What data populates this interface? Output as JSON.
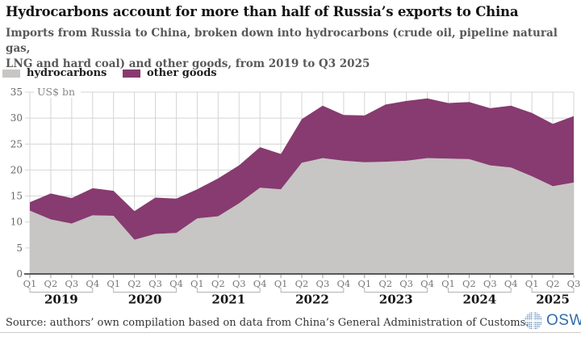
{
  "header": {
    "title": "Hydrocarbons account for more than half of Russia’s exports to China",
    "subtitle_lines": [
      "Imports from Russia to China, broken down into hydrocarbons (crude oil, pipeline natural gas,",
      "LNG and hard coal) and other goods, from 2019 to Q3 2025"
    ]
  },
  "source": "Source: authors’ own compilation based on data from China’s General Administration of Customs.",
  "logo": {
    "text": "OSW",
    "color": "#2f6da9"
  },
  "chart_data": {
    "type": "area",
    "stacked": true,
    "ylabel": "US$ bn",
    "ylim": [
      0,
      35
    ],
    "ytick_step": 5,
    "grid": true,
    "legend_position": "top-left",
    "quarter_labels": [
      "Q1",
      "Q2",
      "Q3",
      "Q4",
      "Q1",
      "Q2",
      "Q3",
      "Q4",
      "Q1",
      "Q2",
      "Q3",
      "Q4",
      "Q1",
      "Q2",
      "Q3",
      "Q4",
      "Q1",
      "Q2",
      "Q3",
      "Q4",
      "Q1",
      "Q2",
      "Q3",
      "Q4",
      "Q1",
      "Q2",
      "Q3"
    ],
    "year_groups": [
      {
        "label": "2019",
        "count": 4
      },
      {
        "label": "2020",
        "count": 4
      },
      {
        "label": "2021",
        "count": 4
      },
      {
        "label": "2022",
        "count": 4
      },
      {
        "label": "2023",
        "count": 4
      },
      {
        "label": "2024",
        "count": 4
      },
      {
        "label": "2025",
        "count": 3
      }
    ],
    "series": [
      {
        "name": "hydrocarbons",
        "color": "#c7c6c4",
        "values": [
          12.2,
          10.5,
          9.7,
          11.3,
          11.2,
          6.6,
          7.7,
          7.9,
          10.7,
          11.1,
          13.6,
          16.6,
          16.3,
          21.4,
          22.3,
          21.8,
          21.5,
          21.6,
          21.8,
          22.3,
          22.2,
          22.1,
          20.9,
          20.5,
          18.8,
          16.9,
          17.6
        ]
      },
      {
        "name": "other goods",
        "color": "#873b70",
        "values": [
          1.6,
          5.0,
          4.9,
          5.2,
          4.8,
          5.5,
          7.0,
          6.6,
          5.6,
          7.3,
          7.3,
          7.8,
          6.8,
          8.4,
          10.1,
          8.8,
          9.0,
          11.0,
          11.5,
          11.5,
          10.7,
          11.0,
          11.0,
          11.9,
          12.2,
          12.0,
          12.8
        ]
      }
    ],
    "stacked_totals": [
      13.8,
      15.5,
      14.6,
      16.5,
      16.0,
      12.1,
      14.7,
      14.5,
      16.3,
      18.4,
      20.9,
      24.4,
      23.1,
      29.8,
      32.4,
      30.6,
      30.5,
      32.6,
      33.3,
      33.8,
      32.9,
      33.1,
      31.9,
      32.4,
      31.0,
      28.9,
      30.4
    ]
  }
}
